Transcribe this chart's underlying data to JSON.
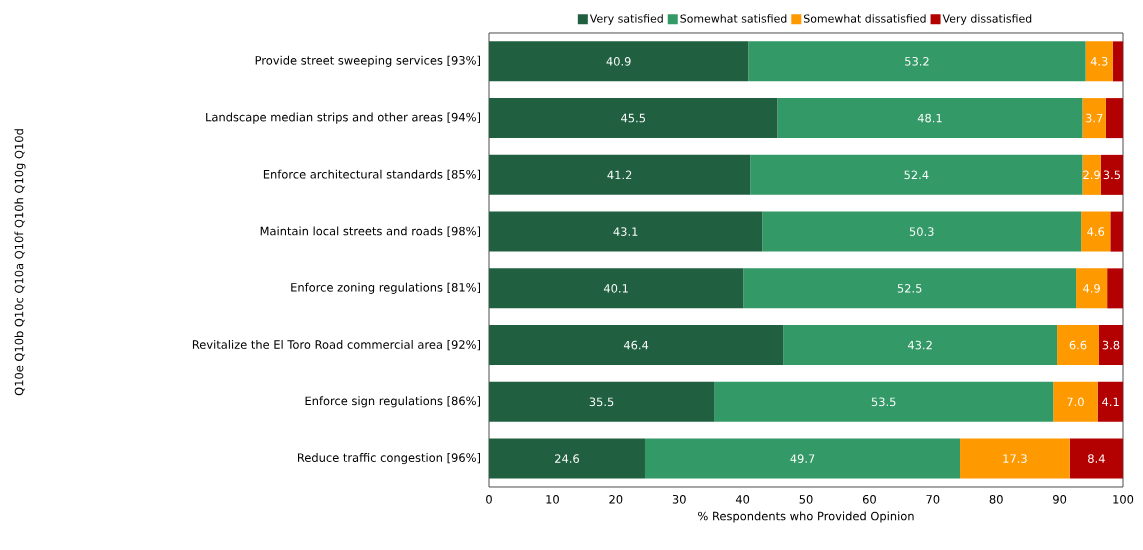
{
  "chart_data": {
    "type": "bar",
    "orientation": "horizontal",
    "stacked": true,
    "xlabel": "% Respondents who Provided Opinion",
    "annotations": [
      "Q10e Q10b Q10c Q10a Q10f Q10h Q10g Q10d"
    ],
    "categories": [
      "Provide street sweeping services [93%]",
      "Landscape median strips and other areas [94%]",
      "Enforce architectural standards [85%]",
      "Maintain local streets and roads [98%]",
      "Enforce zoning regulations [81%]",
      "Revitalize the El Toro Road commercial area [92%]",
      "Enforce sign regulations [86%]",
      "Reduce traffic congestion [96%]"
    ],
    "series": [
      {
        "name": "Very satisfied",
        "color": "#206040",
        "values": [
          40.9,
          45.5,
          41.2,
          43.1,
          40.1,
          46.4,
          35.5,
          24.6
        ],
        "value_labels": [
          "40.9",
          "45.5",
          "41.2",
          "43.1",
          "40.1",
          "46.4",
          "35.5",
          "24.6"
        ]
      },
      {
        "name": "Somewhat satisfied",
        "color": "#339966",
        "values": [
          53.2,
          48.1,
          52.4,
          50.3,
          52.5,
          43.2,
          53.5,
          49.7
        ],
        "value_labels": [
          "53.2",
          "48.1",
          "52.4",
          "50.3",
          "52.5",
          "43.2",
          "53.5",
          "49.7"
        ]
      },
      {
        "name": "Somewhat dissatisfied",
        "color": "#ff9900",
        "values": [
          4.3,
          3.7,
          2.9,
          4.6,
          4.9,
          6.6,
          7.0,
          17.3
        ],
        "value_labels": [
          "4.3",
          "3.7",
          "2.9",
          "4.6",
          "4.9",
          "6.6",
          "7.0",
          "17.3"
        ]
      },
      {
        "name": "Very dissatisfied",
        "color": "#b30000",
        "values": [
          1.6,
          2.7,
          3.5,
          2.0,
          2.5,
          3.8,
          4.1,
          8.4
        ],
        "value_labels": [
          null,
          null,
          "3.5",
          null,
          null,
          "3.8",
          "4.1",
          "8.4"
        ]
      }
    ],
    "xlim": [
      0,
      100
    ],
    "xticks": [
      0,
      10,
      20,
      30,
      40,
      50,
      60,
      70,
      80,
      90,
      100
    ],
    "grid": false,
    "legend": "top"
  }
}
